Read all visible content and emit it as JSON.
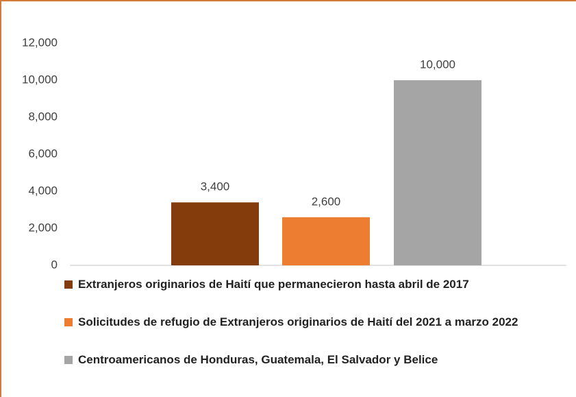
{
  "chart_data": {
    "type": "bar",
    "series": [
      {
        "name": "Extranjeros originarios de Haití que permanecieron hasta abril de 2017",
        "color": "#843c0c",
        "values": [
          3400
        ],
        "value_labels": [
          "3,400"
        ]
      },
      {
        "name": "Solicitudes de refugio de Extranjeros originarios de Haití del 2021 a marzo 2022",
        "color": "#ed7d31",
        "values": [
          2600
        ],
        "value_labels": [
          "2,600"
        ]
      },
      {
        "name": "Centroamericanos de Honduras, Guatemala, El Salvador y Belice",
        "color": "#a5a5a5",
        "values": [
          10000
        ],
        "value_labels": [
          "10,000"
        ]
      }
    ],
    "ylim": [
      0,
      12000
    ],
    "yticks": [
      0,
      {
        "value": 2000,
        "label": "2,000"
      },
      {
        "value": 4000,
        "label": "4,000"
      },
      {
        "value": 6000,
        "label": "6,000"
      },
      {
        "value": 8000,
        "label": "8,000"
      },
      {
        "value": 10000,
        "label": "10,000"
      },
      {
        "value": 12000,
        "label": "12,000"
      }
    ],
    "grid": false,
    "legend": "bottom"
  }
}
